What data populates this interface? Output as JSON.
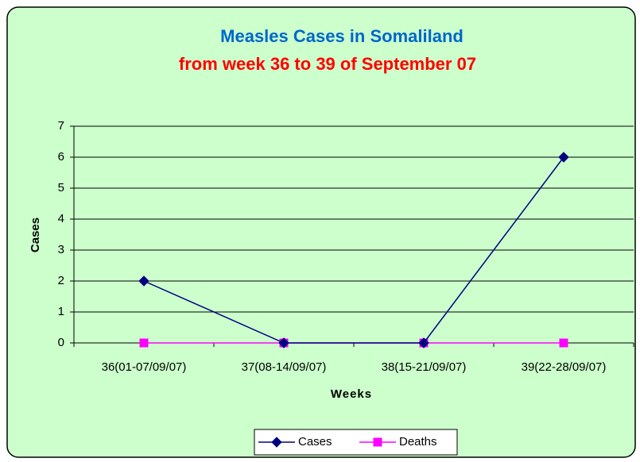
{
  "chart_data": {
    "type": "line",
    "title": "Measles Cases in Somaliland",
    "title_color": "#0066cc",
    "subtitle": "from week 36 to 39 of September 07",
    "subtitle_color": "#ff0000",
    "x_label": "Weeks",
    "y_label": "Cases",
    "categories": [
      "36(01-07/09/07)",
      "37(08-14/09/07)",
      "38(15-21/09/07)",
      "39(22-28/09/07)"
    ],
    "series": [
      {
        "name": "Cases",
        "color": "#000080",
        "marker": "diamond",
        "values": [
          2,
          0,
          0,
          6
        ]
      },
      {
        "name": "Deaths",
        "color": "#ff00ff",
        "marker": "square",
        "values": [
          0,
          0,
          0,
          0
        ]
      }
    ],
    "ylim": [
      0,
      7
    ],
    "yticks": [
      0,
      1,
      2,
      3,
      4,
      5,
      6,
      7
    ],
    "grid": true,
    "legend": "bottom",
    "background": "#ccffcc"
  }
}
